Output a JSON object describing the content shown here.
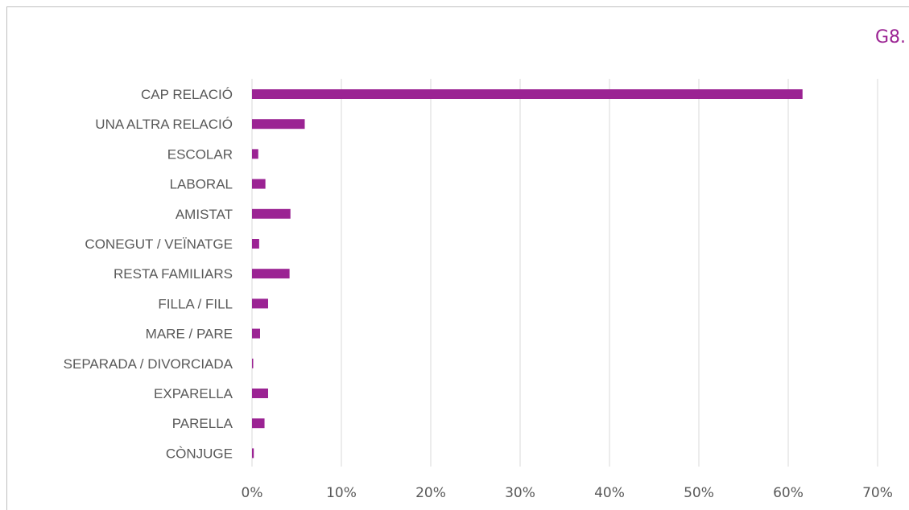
{
  "header": {
    "figure_id": "G8."
  },
  "colors": {
    "bar": "#9b2393",
    "grid": "#d9d9d9",
    "axis_text": "#595959",
    "figure_id": "#9b2393"
  },
  "chart_data": {
    "type": "bar",
    "orientation": "horizontal",
    "categories": [
      "CAP RELACIÓ",
      "UNA ALTRA RELACIÓ",
      "ESCOLAR",
      "LABORAL",
      "AMISTAT",
      "CONEGUT / VEÏNATGE",
      "RESTA FAMILIARS",
      "FILLA / FILL",
      "MARE / PARE",
      "SEPARADA / DIVORCIADA",
      "EXPARELLA",
      "PARELLA",
      "CÒNJUGE"
    ],
    "values": [
      61.6,
      5.9,
      0.7,
      1.5,
      4.3,
      0.8,
      4.2,
      1.8,
      0.9,
      0.1,
      1.8,
      1.4,
      0.2
    ],
    "xlim": [
      0,
      70
    ],
    "xticks": [
      "0%",
      "10%",
      "20%",
      "30%",
      "40%",
      "50%",
      "60%",
      "70%"
    ],
    "grid": "vertical",
    "title": "",
    "xlabel": "",
    "ylabel": ""
  }
}
